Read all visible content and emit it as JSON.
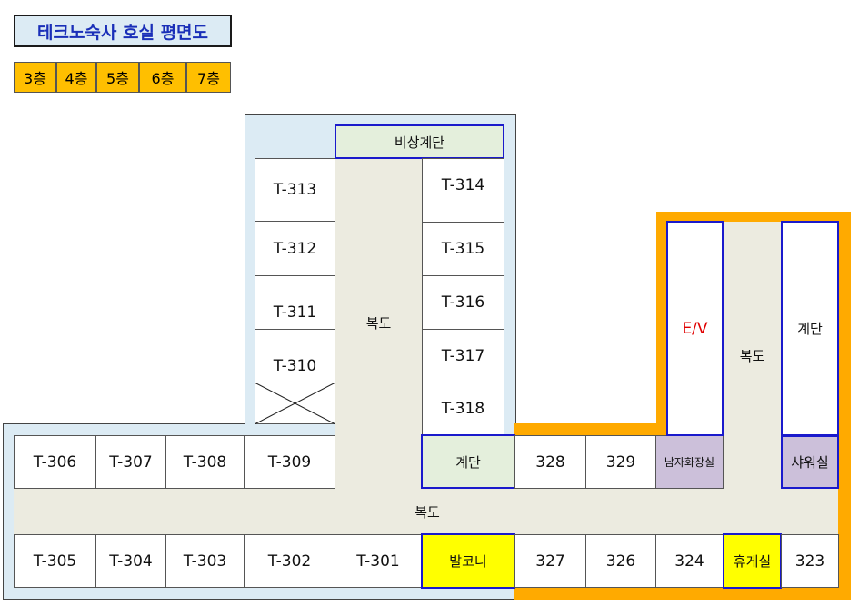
{
  "title": "테크노숙사 호실 평면도",
  "floors": [
    "3층",
    "4층",
    "5층",
    "6층",
    "7층"
  ],
  "rooms": {
    "t313": "T-313",
    "t312": "T-312",
    "t311": "T-311",
    "t310": "T-310",
    "t314": "T-314",
    "t315": "T-315",
    "t316": "T-316",
    "t317": "T-317",
    "t318": "T-318",
    "t306": "T-306",
    "t307": "T-307",
    "t308": "T-308",
    "t309": "T-309",
    "t305": "T-305",
    "t304": "T-304",
    "t303": "T-303",
    "t302": "T-302",
    "t301": "T-301",
    "r328": "328",
    "r329": "329",
    "r327": "327",
    "r326": "326",
    "r324": "324",
    "r323": "323"
  },
  "facilities": {
    "emergency_stairs": "비상계단",
    "corridor": "복도",
    "stairs": "계단",
    "balcony": "발코니",
    "ev": "E/V",
    "mens_restroom": "남자화장실",
    "shower": "샤워실",
    "lounge": "휴게실"
  },
  "colors": {
    "tab": "#ffbf00",
    "tower_bg": "#dcebf4",
    "corridor": "#ecebe0",
    "highlight": "#ffff00",
    "purple": "#ccc0da",
    "orange_wall": "#ffaa00",
    "ev_text": "#e00000",
    "title_text": "#1a2fb8"
  },
  "icons": {
    "storage": "cross-box-icon"
  }
}
